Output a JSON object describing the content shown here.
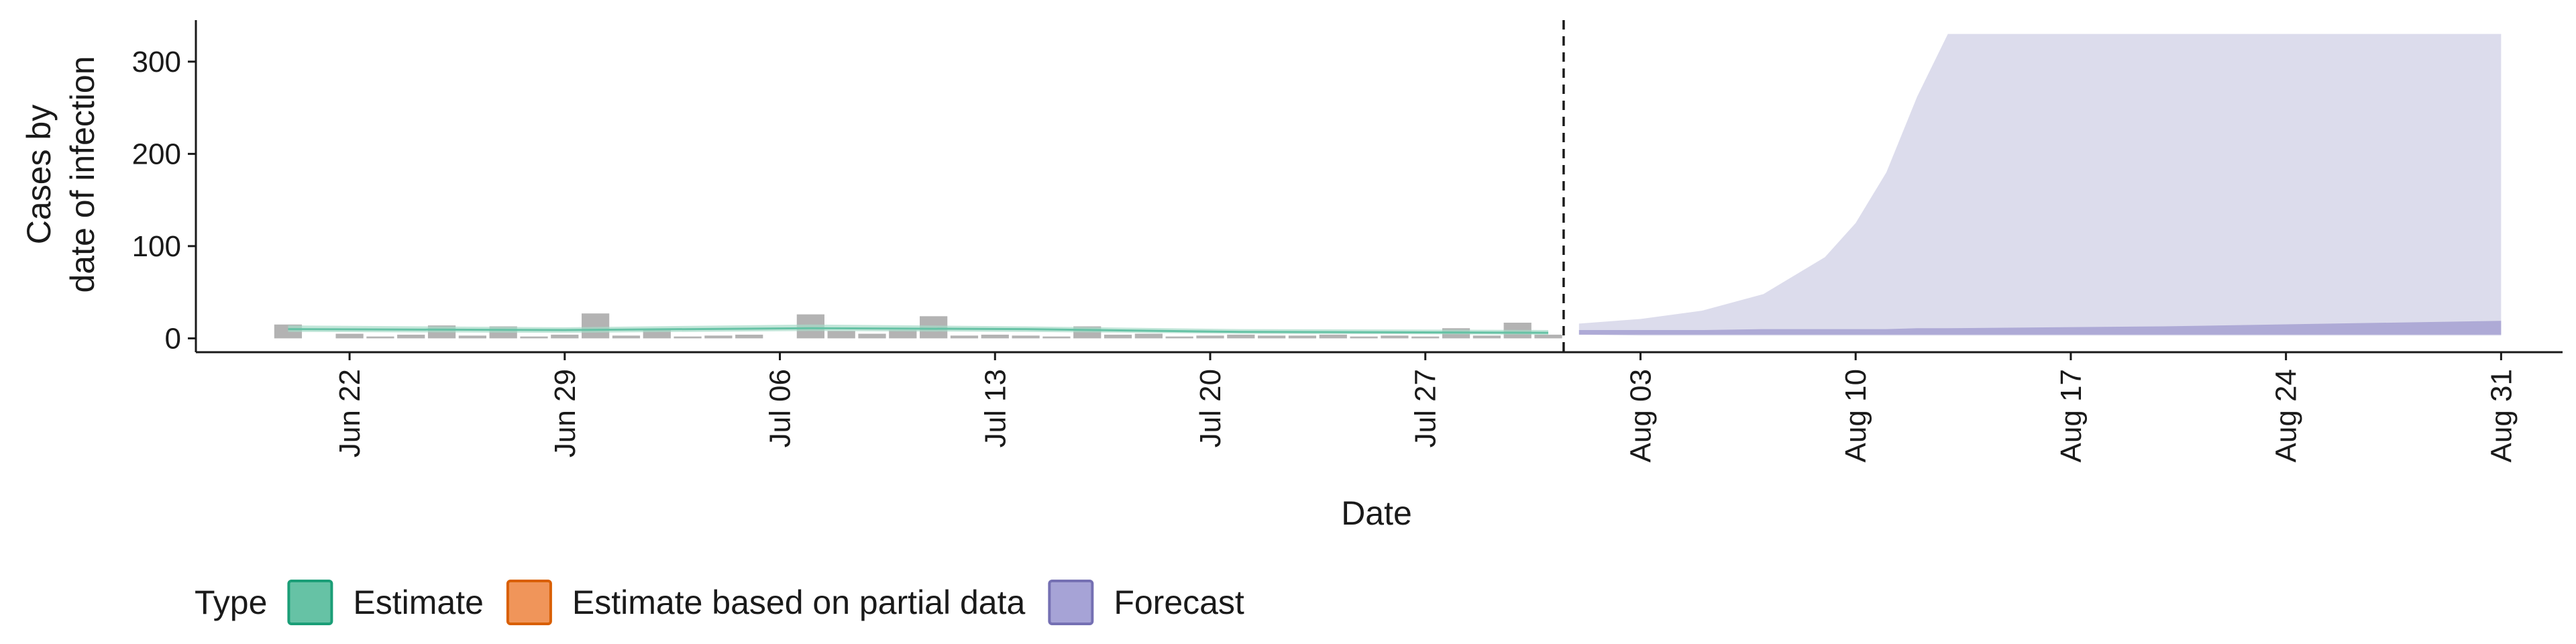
{
  "chart_data": {
    "type": "area",
    "title": "",
    "xlabel": "Date",
    "ylabel_lines": [
      "Cases by",
      "date of infection"
    ],
    "ylim": [
      -15,
      345
    ],
    "xlim": [
      "2020-06-17",
      "2020-09-02"
    ],
    "y_ticks": [
      0,
      100,
      200,
      300
    ],
    "x_ticks": [
      {
        "date": "2020-06-22",
        "label": "Jun 22"
      },
      {
        "date": "2020-06-29",
        "label": "Jun 29"
      },
      {
        "date": "2020-07-06",
        "label": "Jul 06"
      },
      {
        "date": "2020-07-13",
        "label": "Jul 13"
      },
      {
        "date": "2020-07-20",
        "label": "Jul 20"
      },
      {
        "date": "2020-07-27",
        "label": "Jul 27"
      },
      {
        "date": "2020-08-03",
        "label": "Aug 03"
      },
      {
        "date": "2020-08-10",
        "label": "Aug 10"
      },
      {
        "date": "2020-08-17",
        "label": "Aug 17"
      },
      {
        "date": "2020-08-24",
        "label": "Aug 24"
      },
      {
        "date": "2020-08-31",
        "label": "Aug 31"
      }
    ],
    "forecast_start": "2020-08-01",
    "observed_cases": [
      {
        "date": "2020-06-20",
        "value": 15
      },
      {
        "date": "2020-06-22",
        "value": 5
      },
      {
        "date": "2020-06-23",
        "value": 2
      },
      {
        "date": "2020-06-24",
        "value": 4
      },
      {
        "date": "2020-06-25",
        "value": 14
      },
      {
        "date": "2020-06-26",
        "value": 3
      },
      {
        "date": "2020-06-27",
        "value": 13
      },
      {
        "date": "2020-06-28",
        "value": 2
      },
      {
        "date": "2020-06-29",
        "value": 4
      },
      {
        "date": "2020-06-30",
        "value": 27
      },
      {
        "date": "2020-07-01",
        "value": 3
      },
      {
        "date": "2020-07-02",
        "value": 9
      },
      {
        "date": "2020-07-03",
        "value": 2
      },
      {
        "date": "2020-07-04",
        "value": 3
      },
      {
        "date": "2020-07-05",
        "value": 4
      },
      {
        "date": "2020-07-07",
        "value": 26
      },
      {
        "date": "2020-07-08",
        "value": 8
      },
      {
        "date": "2020-07-09",
        "value": 5
      },
      {
        "date": "2020-07-10",
        "value": 9
      },
      {
        "date": "2020-07-11",
        "value": 24
      },
      {
        "date": "2020-07-12",
        "value": 3
      },
      {
        "date": "2020-07-13",
        "value": 4
      },
      {
        "date": "2020-07-14",
        "value": 3
      },
      {
        "date": "2020-07-15",
        "value": 2
      },
      {
        "date": "2020-07-16",
        "value": 13
      },
      {
        "date": "2020-07-17",
        "value": 4
      },
      {
        "date": "2020-07-18",
        "value": 5
      },
      {
        "date": "2020-07-19",
        "value": 2
      },
      {
        "date": "2020-07-20",
        "value": 3
      },
      {
        "date": "2020-07-21",
        "value": 4
      },
      {
        "date": "2020-07-22",
        "value": 3
      },
      {
        "date": "2020-07-23",
        "value": 3
      },
      {
        "date": "2020-07-24",
        "value": 4
      },
      {
        "date": "2020-07-25",
        "value": 2
      },
      {
        "date": "2020-07-26",
        "value": 3
      },
      {
        "date": "2020-07-27",
        "value": 2
      },
      {
        "date": "2020-07-28",
        "value": 11
      },
      {
        "date": "2020-07-29",
        "value": 3
      },
      {
        "date": "2020-07-30",
        "value": 17
      },
      {
        "date": "2020-07-31",
        "value": 4
      }
    ],
    "series": [
      {
        "name": "Estimate",
        "color": "#1b9e77",
        "points": [
          {
            "date": "2020-06-20",
            "lower": 7,
            "upper": 14,
            "median": 10
          },
          {
            "date": "2020-06-29",
            "lower": 6,
            "upper": 12,
            "median": 9
          },
          {
            "date": "2020-07-07",
            "lower": 8,
            "upper": 15,
            "median": 11
          },
          {
            "date": "2020-07-14",
            "lower": 7,
            "upper": 13,
            "median": 10
          },
          {
            "date": "2020-07-21",
            "lower": 5,
            "upper": 10,
            "median": 7
          },
          {
            "date": "2020-07-31",
            "lower": 4,
            "upper": 9,
            "median": 6
          }
        ]
      },
      {
        "name": "Estimate based on partial data",
        "color": "#d95f02",
        "points": []
      },
      {
        "name": "Forecast",
        "color": "#7570b3",
        "points": [
          {
            "date": "2020-08-01",
            "lower": 4,
            "upper": 16,
            "inner_lower": 4,
            "inner_upper": 9
          },
          {
            "date": "2020-08-03",
            "lower": 3,
            "upper": 21,
            "inner_lower": 4,
            "inner_upper": 9
          },
          {
            "date": "2020-08-05",
            "lower": 3,
            "upper": 30,
            "inner_lower": 4,
            "inner_upper": 9
          },
          {
            "date": "2020-08-07",
            "lower": 3,
            "upper": 48,
            "inner_lower": 4,
            "inner_upper": 10
          },
          {
            "date": "2020-08-09",
            "lower": 3,
            "upper": 88,
            "inner_lower": 4,
            "inner_upper": 10
          },
          {
            "date": "2020-08-10",
            "lower": 3,
            "upper": 125,
            "inner_lower": 4,
            "inner_upper": 10
          },
          {
            "date": "2020-08-11",
            "lower": 3,
            "upper": 180,
            "inner_lower": 4,
            "inner_upper": 10
          },
          {
            "date": "2020-08-12",
            "lower": 3,
            "upper": 262,
            "inner_lower": 4,
            "inner_upper": 11
          },
          {
            "date": "2020-08-13",
            "lower": 3,
            "upper": 330,
            "inner_lower": 4,
            "inner_upper": 11
          },
          {
            "date": "2020-08-20",
            "lower": 3,
            "upper": 330,
            "inner_lower": 4,
            "inner_upper": 13
          },
          {
            "date": "2020-08-31",
            "lower": 3,
            "upper": 330,
            "inner_lower": 4,
            "inner_upper": 19
          }
        ]
      }
    ],
    "legend": {
      "position": "bottom-left",
      "title": "Type",
      "entries": [
        {
          "label": "Estimate",
          "fill": "#66c2a5",
          "stroke": "#1b9e77"
        },
        {
          "label": "Estimate based on partial data",
          "fill": "#f0955a",
          "stroke": "#d95f02"
        },
        {
          "label": "Forecast",
          "fill": "#a6a3d6",
          "stroke": "#7570b3"
        }
      ]
    },
    "colors": {
      "observed_bar": "#b3b3b3",
      "forecast_outer": "#dcdcec",
      "forecast_inner": "#aeaad6",
      "estimate_band": "#a8dcc9",
      "estimate_line": "#66c2a5"
    }
  }
}
